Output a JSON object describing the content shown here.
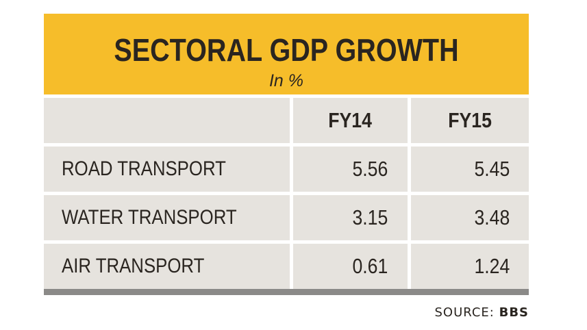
{
  "chart_data": {
    "type": "table",
    "title": "SECTORAL GDP GROWTH",
    "subtitle": "In %",
    "columns": [
      "",
      "FY14",
      "FY15"
    ],
    "rows": [
      {
        "label": "ROAD TRANSPORT",
        "values": [
          "5.56",
          "5.45"
        ]
      },
      {
        "label": "WATER TRANSPORT",
        "values": [
          "3.15",
          "3.48"
        ]
      },
      {
        "label": "AIR TRANSPORT",
        "values": [
          "0.61",
          "1.24"
        ]
      }
    ],
    "source_label": "SOURCE:",
    "source_value": "BBS"
  },
  "colors": {
    "header_bg": "#f6bd2a",
    "cell_bg": "#e6e3de",
    "bottom_bar": "#8b8a88",
    "text": "#2a2520"
  }
}
